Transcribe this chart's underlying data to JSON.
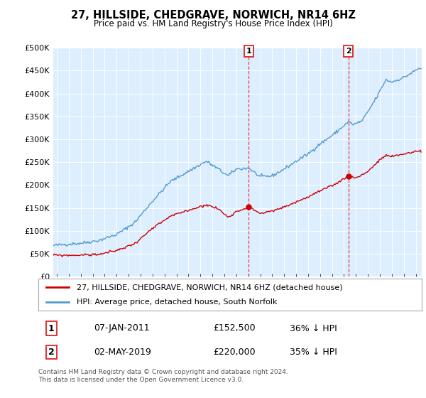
{
  "title": "27, HILLSIDE, CHEDGRAVE, NORWICH, NR14 6HZ",
  "subtitle": "Price paid vs. HM Land Registry's House Price Index (HPI)",
  "ylabel_ticks": [
    "£0",
    "£50K",
    "£100K",
    "£150K",
    "£200K",
    "£250K",
    "£300K",
    "£350K",
    "£400K",
    "£450K",
    "£500K"
  ],
  "ytick_values": [
    0,
    50000,
    100000,
    150000,
    200000,
    250000,
    300000,
    350000,
    400000,
    450000,
    500000
  ],
  "ylim": [
    0,
    500000
  ],
  "xlim_start": 1994.7,
  "xlim_end": 2025.5,
  "legend_line1": "27, HILLSIDE, CHEDGRAVE, NORWICH, NR14 6HZ (detached house)",
  "legend_line2": "HPI: Average price, detached house, South Norfolk",
  "annotation1_label": "1",
  "annotation1_year": 2011.04,
  "annotation1_date": "07-JAN-2011",
  "annotation1_price": "£152,500",
  "annotation1_hpi": "36% ↓ HPI",
  "annotation2_label": "2",
  "annotation2_year": 2019.37,
  "annotation2_date": "02-MAY-2019",
  "annotation2_price": "£220,000",
  "annotation2_hpi": "35% ↓ HPI",
  "sale1_price": 152500,
  "sale2_price": 220000,
  "red_color": "#cc0000",
  "blue_color": "#5599cc",
  "background_color": "#ddeeff",
  "grid_color": "#ffffff",
  "footer": "Contains HM Land Registry data © Crown copyright and database right 2024.\nThis data is licensed under the Open Government Licence v3.0."
}
